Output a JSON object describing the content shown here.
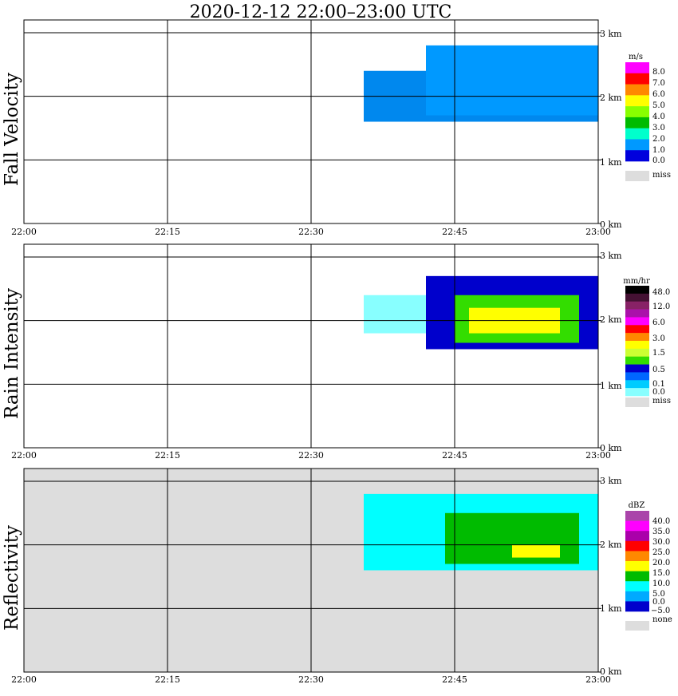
{
  "title": "2020-12-12   22:00–23:00 UTC",
  "time_ticks": [
    "22:00",
    "22:15",
    "22:30",
    "22:45",
    "23:00"
  ],
  "height_ticks": [
    "0 km",
    "1 km",
    "2 km",
    "3 km"
  ],
  "missing_color": "#dddddd",
  "chart_data": [
    {
      "type": "heatmap",
      "title": "Fall Velocity",
      "x": {
        "start": "22:00",
        "end": "23:00",
        "ticks": [
          "22:00",
          "22:15",
          "22:30",
          "22:45",
          "23:00"
        ]
      },
      "y": {
        "unit": "km",
        "range": [
          0,
          3.2
        ],
        "ticks": [
          0,
          1,
          2,
          3
        ]
      },
      "grid": true,
      "background": "#ffffff",
      "legend": {
        "title": "m/s",
        "placement": "right",
        "labels": [
          "8.0",
          "7.0",
          "6.0",
          "5.0",
          "4.0",
          "3.0",
          "2.0",
          "1.0",
          "0.0"
        ],
        "colors": [
          "#ff00ff",
          "#ff0000",
          "#ff8800",
          "#ffff00",
          "#88ff00",
          "#00bb00",
          "#00ffcc",
          "#0099ff",
          "#0000dd"
        ],
        "missing_label": "miss"
      },
      "regions": [
        {
          "t_start": "22:35:30",
          "t_end": "23:00",
          "z_bottom": 1.6,
          "z_top": 2.4,
          "value": 2.0
        },
        {
          "t_start": "22:42:00",
          "t_end": "23:00",
          "z_bottom": 1.7,
          "z_top": 2.8,
          "value": 1.5
        }
      ]
    },
    {
      "type": "heatmap",
      "title": "Rain Intensity",
      "x": {
        "start": "22:00",
        "end": "23:00",
        "ticks": [
          "22:00",
          "22:15",
          "22:30",
          "22:45",
          "23:00"
        ]
      },
      "y": {
        "unit": "km",
        "range": [
          0,
          3.2
        ],
        "ticks": [
          0,
          1,
          2,
          3
        ]
      },
      "grid": true,
      "background": "#ffffff",
      "legend": {
        "title": "mm/hr",
        "placement": "right",
        "labels": [
          "48.0",
          "12.0",
          "6.0",
          "3.0",
          "1.5",
          "0.5",
          "0.1",
          "0.0"
        ],
        "colors": [
          "#000000",
          "#441133",
          "#882266",
          "#aa11aa",
          "#ff00ff",
          "#ff0000",
          "#ff8800",
          "#ffff00",
          "#ccff33",
          "#33dd00",
          "#0000cc",
          "#0066ff",
          "#00ccff",
          "#88ffff"
        ],
        "missing_label": "miss"
      },
      "regions": [
        {
          "t_start": "22:35:30",
          "t_end": "22:42:00",
          "z_bottom": 1.8,
          "z_top": 2.4,
          "value": 0.1
        },
        {
          "t_start": "22:42:00",
          "t_end": "23:00",
          "z_bottom": 1.55,
          "z_top": 2.7,
          "value": 0.5
        },
        {
          "t_start": "22:45:00",
          "t_end": "22:58:00",
          "z_bottom": 1.65,
          "z_top": 2.4,
          "value": 1.5
        },
        {
          "t_start": "22:46:30",
          "t_end": "22:56:00",
          "z_bottom": 1.8,
          "z_top": 2.2,
          "value": 3.0
        }
      ]
    },
    {
      "type": "heatmap",
      "title": "Reflectivity",
      "x": {
        "start": "22:00",
        "end": "23:00",
        "ticks": [
          "22:00",
          "22:15",
          "22:30",
          "22:45",
          "23:00"
        ]
      },
      "y": {
        "unit": "km",
        "range": [
          0,
          3.2
        ],
        "ticks": [
          0,
          1,
          2,
          3
        ]
      },
      "grid": true,
      "background": "#dddddd",
      "legend": {
        "title": "dBZ",
        "placement": "right",
        "labels": [
          "40.0",
          "35.0",
          "30.0",
          "25.0",
          "20.0",
          "15.0",
          "10.0",
          "5.0",
          "0.0",
          "−5.0"
        ],
        "colors": [
          "#aa44aa",
          "#ff00ff",
          "#aa00aa",
          "#ff0000",
          "#ff8800",
          "#ffff00",
          "#00bb00",
          "#00ffff",
          "#00aaff",
          "#0000cc"
        ],
        "missing_label": "none"
      },
      "regions": [
        {
          "t_start": "22:35:30",
          "t_end": "23:00",
          "z_bottom": 1.6,
          "z_top": 2.8,
          "value": 5.0
        },
        {
          "t_start": "22:44:00",
          "t_end": "22:58:00",
          "z_bottom": 1.7,
          "z_top": 2.5,
          "value": 15.0
        },
        {
          "t_start": "22:51:00",
          "t_end": "22:56:00",
          "z_bottom": 1.8,
          "z_top": 2.0,
          "value": 20.0
        }
      ]
    }
  ]
}
